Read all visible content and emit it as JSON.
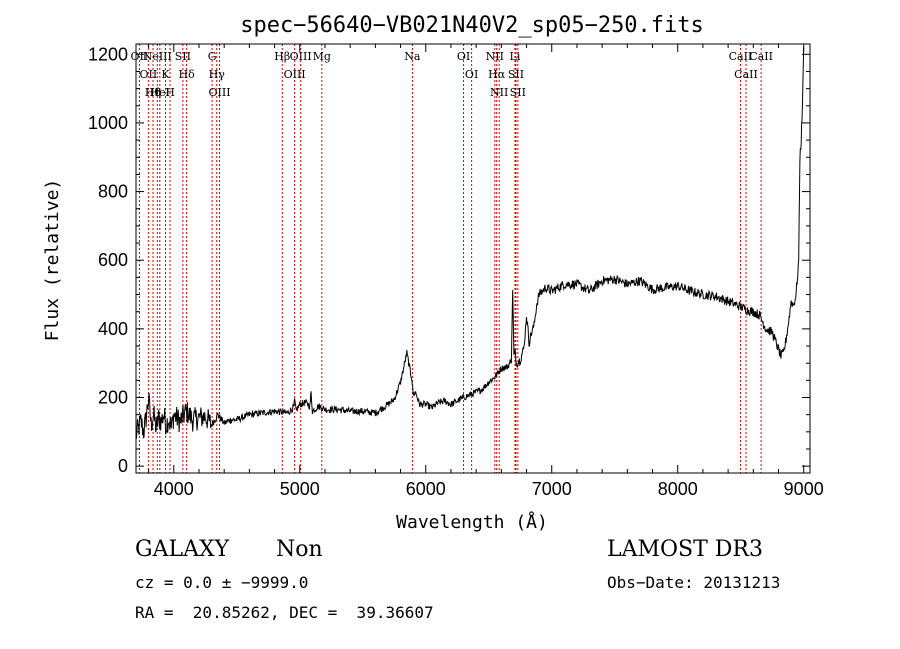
{
  "chart_data": {
    "type": "line",
    "title": "spec−56640−VB021N40V2_sp05−250.fits",
    "xlabel": "Wavelength (Å)",
    "ylabel": "Flux (relative)",
    "xlim": [
      3700,
      9050
    ],
    "ylim": [
      -20,
      1230
    ],
    "xticks": [
      4000,
      5000,
      6000,
      7000,
      8000,
      9000
    ],
    "yticks": [
      0,
      200,
      400,
      600,
      800,
      1000,
      1200
    ],
    "grid": false,
    "series": [
      {
        "x": [
          3700,
          3720,
          3740,
          3760,
          3780,
          3800,
          3820,
          3840,
          3860,
          3880,
          3900,
          3920,
          3940,
          3960,
          3980,
          4000,
          4050,
          4100,
          4150,
          4200,
          4250,
          4300,
          4350,
          4400,
          4450,
          4500,
          4600,
          4700,
          4800,
          4900,
          4950,
          4960,
          4970,
          5000,
          5050,
          5080,
          5090,
          5100,
          5150,
          5200,
          5300,
          5400,
          5500,
          5600,
          5700,
          5750,
          5800,
          5850,
          5880,
          5890,
          5900,
          5920,
          5950,
          6000,
          6050,
          6100,
          6150,
          6200,
          6300,
          6400,
          6450,
          6500,
          6550,
          6600,
          6650,
          6680,
          6690,
          6700,
          6710,
          6720,
          6750,
          6780,
          6800,
          6820,
          6840,
          6860,
          6880,
          6900,
          6950,
          7000,
          7100,
          7200,
          7300,
          7400,
          7500,
          7600,
          7700,
          7800,
          7900,
          8000,
          8100,
          8200,
          8300,
          8400,
          8500,
          8550,
          8600,
          8650,
          8700,
          8750,
          8780,
          8800,
          8820,
          8840,
          8860,
          8880,
          8900,
          8920,
          8940,
          8960,
          8970,
          8980,
          8990,
          9000
        ],
        "y": [
          90,
          110,
          130,
          100,
          140,
          200,
          120,
          150,
          110,
          140,
          130,
          150,
          120,
          140,
          110,
          150,
          130,
          160,
          135,
          140,
          145,
          120,
          150,
          125,
          135,
          135,
          150,
          155,
          160,
          155,
          170,
          190,
          160,
          180,
          185,
          175,
          215,
          160,
          175,
          165,
          165,
          160,
          160,
          155,
          180,
          195,
          245,
          330,
          270,
          255,
          210,
          215,
          180,
          180,
          170,
          185,
          190,
          180,
          200,
          215,
          225,
          245,
          260,
          285,
          290,
          310,
          520,
          320,
          330,
          300,
          310,
          345,
          440,
          360,
          390,
          410,
          470,
          500,
          520,
          510,
          530,
          530,
          510,
          540,
          545,
          530,
          540,
          515,
          520,
          525,
          510,
          500,
          495,
          480,
          465,
          455,
          450,
          440,
          400,
          390,
          360,
          340,
          320,
          330,
          370,
          420,
          480,
          470,
          500,
          600,
          900,
          950,
          1050,
          1220
        ]
      }
    ],
    "lines": [
      {
        "wave": 3727,
        "labels": [
          "OII"
        ]
      },
      {
        "wave": 3798,
        "labels": [
          "OII"
        ]
      },
      {
        "wave": 3835,
        "labels": [
          "Hθ",
          "Hη"
        ]
      },
      {
        "wave": 3869,
        "labels": [
          "NeIII"
        ]
      },
      {
        "wave": 3889,
        "labels": [
          "HeI"
        ]
      },
      {
        "wave": 3934,
        "labels": [
          "K"
        ]
      },
      {
        "wave": 3970,
        "labels": [
          "H"
        ]
      },
      {
        "wave": 4072,
        "labels": [
          "SII"
        ]
      },
      {
        "wave": 4102,
        "labels": [
          "Hδ"
        ]
      },
      {
        "wave": 4304,
        "labels": [
          "G"
        ]
      },
      {
        "wave": 4341,
        "labels": [
          "Hγ"
        ]
      },
      {
        "wave": 4363,
        "labels": [
          "OIII"
        ]
      },
      {
        "wave": 4861,
        "labels": [
          "Hβ"
        ]
      },
      {
        "wave": 4959,
        "labels": [
          "OIII"
        ]
      },
      {
        "wave": 5007,
        "labels": [
          "OIII"
        ]
      },
      {
        "wave": 5175,
        "labels": [
          "Mg"
        ]
      },
      {
        "wave": 5894,
        "labels": [
          "Na"
        ]
      },
      {
        "wave": 6300,
        "labels": [
          "OI"
        ]
      },
      {
        "wave": 6364,
        "labels": [
          "OI"
        ]
      },
      {
        "wave": 6548,
        "labels": [
          "NII"
        ]
      },
      {
        "wave": 6563,
        "labels": [
          "Hα"
        ]
      },
      {
        "wave": 6583,
        "labels": [
          "NII"
        ]
      },
      {
        "wave": 6708,
        "labels": [
          "Li"
        ]
      },
      {
        "wave": 6716,
        "labels": [
          "SII"
        ]
      },
      {
        "wave": 6731,
        "labels": [
          "SII"
        ]
      },
      {
        "wave": 8498,
        "labels": [
          "CaII"
        ]
      },
      {
        "wave": 8542,
        "labels": [
          "CaII"
        ]
      },
      {
        "wave": 8662,
        "labels": [
          "CaII"
        ]
      }
    ],
    "line_label_text": {
      "OII_a": "OII",
      "OII_b": "OII"
    }
  },
  "info": {
    "class_label": "GALAXY",
    "subclass_label": "Non",
    "survey_label": "LAMOST DR3",
    "cz_line": "cz = 0.0 ± −9999.0",
    "obsdate_line": "Obs−Date: 20131213",
    "coords_line": "RA =  20.85262, DEC =  39.36607"
  },
  "colors": {
    "spectrum": "#000000",
    "line_markers": "#cc0000",
    "axes": "#000000"
  }
}
